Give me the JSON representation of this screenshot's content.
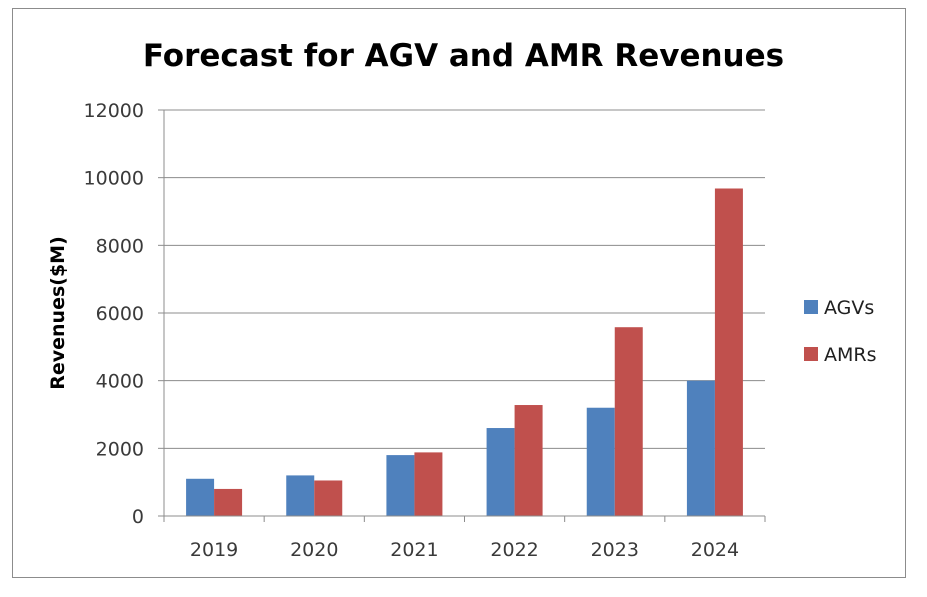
{
  "chart_data": {
    "type": "bar",
    "title": "Forecast for AGV and AMR Revenues",
    "xlabel": "",
    "ylabel": "Revenues($M)",
    "categories": [
      "2019",
      "2020",
      "2021",
      "2022",
      "2023",
      "2024"
    ],
    "series": [
      {
        "name": "AGVs",
        "color": "#4f81bd",
        "values": [
          1100,
          1200,
          1800,
          2600,
          3200,
          4000
        ]
      },
      {
        "name": "AMRs",
        "color": "#c0504d",
        "values": [
          800,
          1050,
          1880,
          3280,
          5580,
          9680
        ]
      }
    ],
    "ylim": [
      0,
      12000
    ],
    "yticks": [
      "0",
      "2000",
      "4000",
      "6000",
      "8000",
      "10000",
      "12000"
    ],
    "grid": true,
    "legend_position": "right"
  }
}
